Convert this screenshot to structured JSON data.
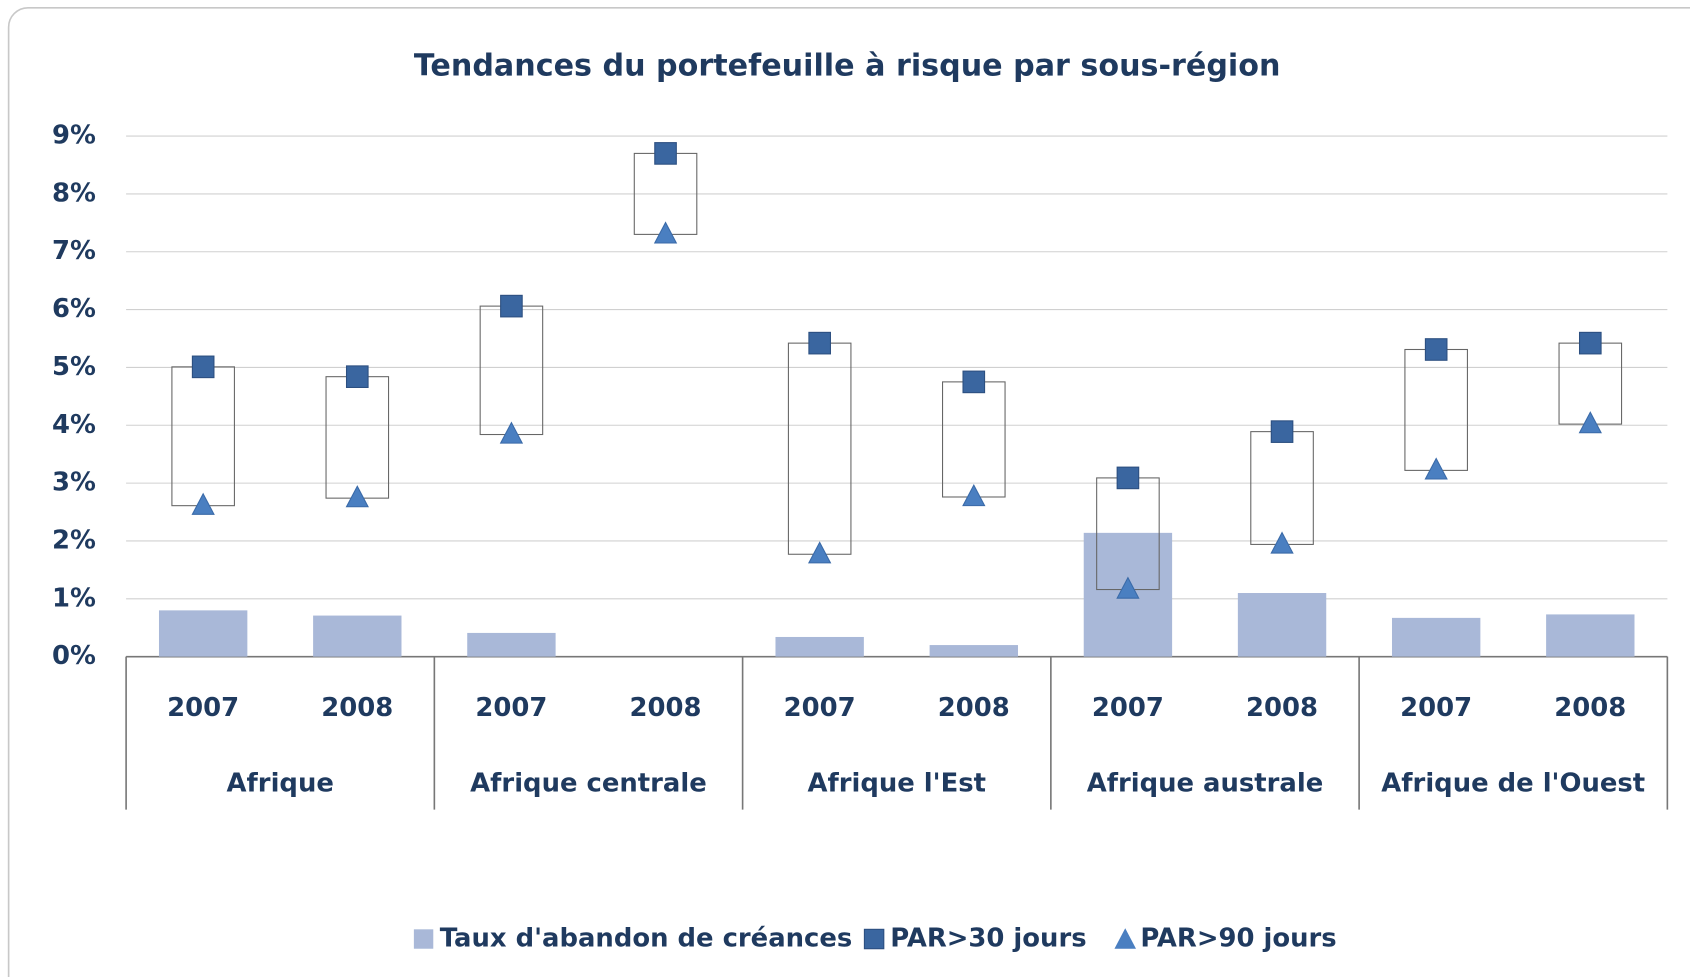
{
  "chart_data": {
    "type": "bar",
    "title": "Tendances du portefeuille à risque par sous-région",
    "categories": [
      "2007",
      "2008",
      "2007",
      "2008",
      "2007",
      "2008",
      "2007",
      "2008",
      "2007",
      "2008"
    ],
    "groups": [
      "Afrique",
      "Afrique centrale",
      "Afrique l'Est",
      "Afrique australe",
      "Afrique de l'Ouest"
    ],
    "series": [
      {
        "name": "Taux d'abandon de créances",
        "color": "#a9b8d8",
        "values": [
          0.8,
          0.71,
          0.41,
          0,
          0.34,
          0.2,
          2.14,
          1.1,
          0.67,
          0.73
        ]
      },
      {
        "name": "PAR>30 jours",
        "color": "#3a66a0",
        "values": [
          5.01,
          4.84,
          6.06,
          8.7,
          5.42,
          4.75,
          3.09,
          3.89,
          5.31,
          5.42
        ]
      },
      {
        "name": "PAR>90 jours",
        "color": "#4a7fc1",
        "values": [
          2.61,
          2.74,
          3.84,
          7.3,
          1.77,
          2.76,
          1.16,
          1.94,
          3.22,
          4.02
        ]
      }
    ],
    "ylim": [
      0,
      9
    ],
    "yticks": [
      {
        "value": 0,
        "label": "0%"
      },
      {
        "value": 1,
        "label": "1%"
      },
      {
        "value": 2,
        "label": "2%"
      },
      {
        "value": 3,
        "label": "3%"
      },
      {
        "value": 4,
        "label": "4%"
      },
      {
        "value": 5,
        "label": "5%"
      },
      {
        "value": 6,
        "label": "6%"
      },
      {
        "value": 7,
        "label": "7%"
      },
      {
        "value": 8,
        "label": "8%"
      },
      {
        "value": 9,
        "label": "9%"
      }
    ],
    "grid": true,
    "legend": "bottom"
  }
}
